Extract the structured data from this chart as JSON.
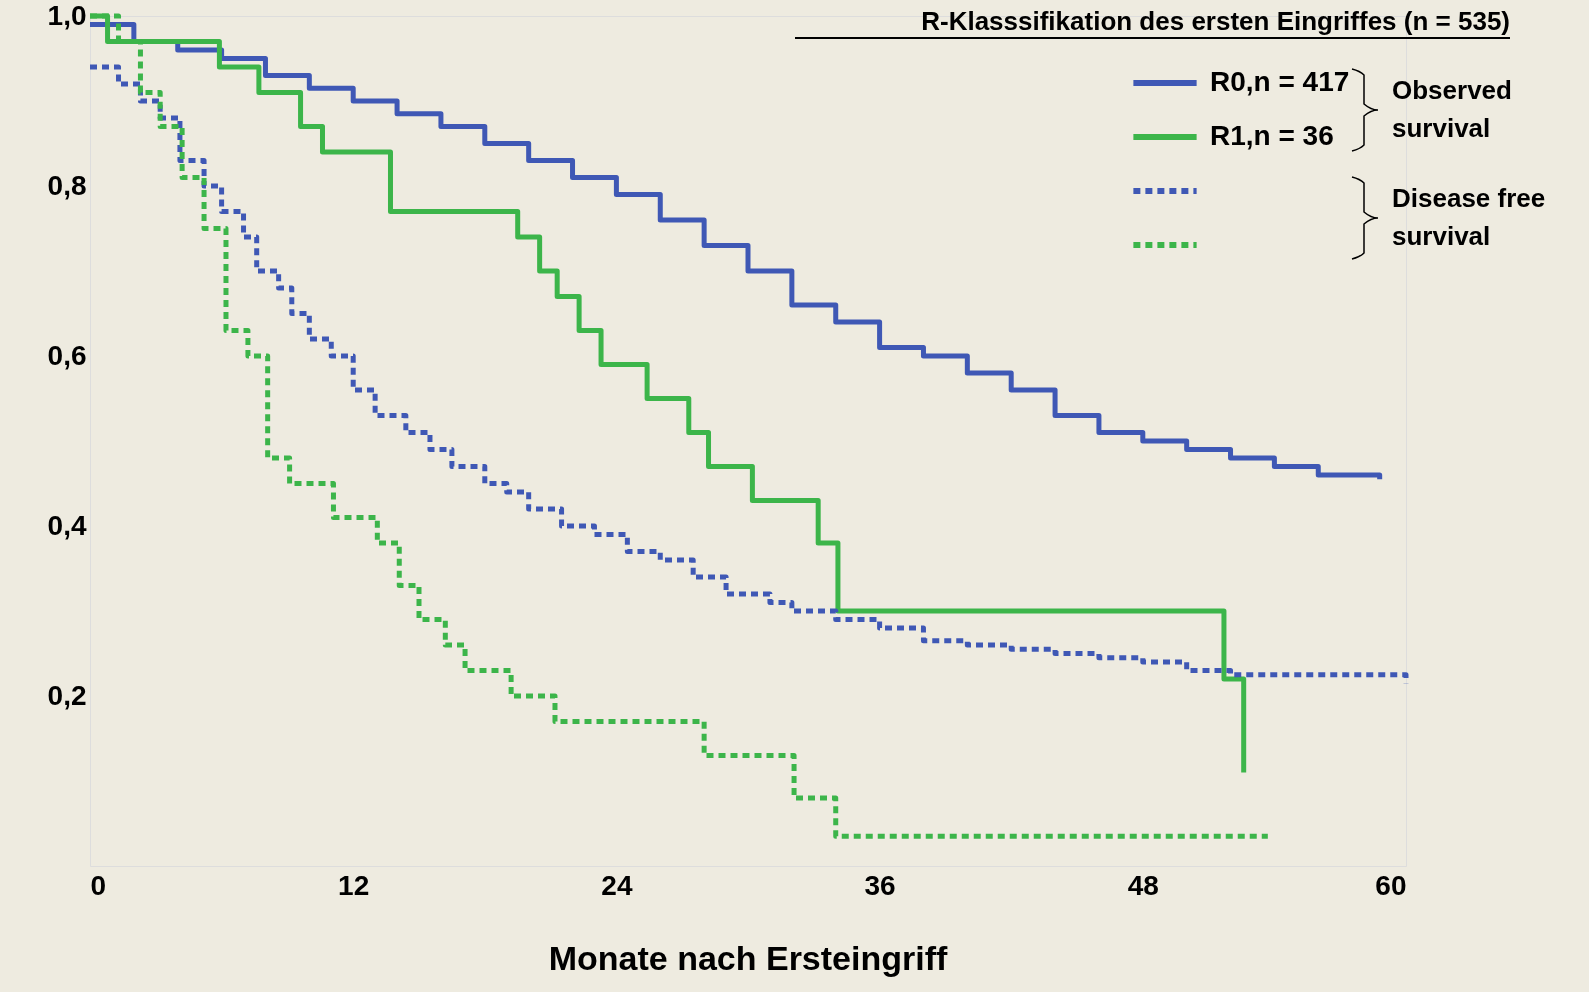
{
  "chart_data": {
    "type": "step",
    "xlabel": "Monate nach Ersteingriff",
    "legend_title": "R-Klasssifikation des ersten Eingriffes (n = 535)",
    "xlim": [
      0,
      60
    ],
    "xticks": [
      0,
      12,
      24,
      36,
      48,
      60
    ],
    "ylim": [
      0,
      1.0
    ],
    "yticks": [
      {
        "value": 0,
        "label": null
      },
      {
        "value": 0.2,
        "label": "0,2"
      },
      {
        "value": 0.4,
        "label": "0,4"
      },
      {
        "value": 0.6,
        "label": "0,6"
      },
      {
        "value": 0.8,
        "label": "0,8"
      },
      {
        "value": 1.0,
        "label": "1,0"
      }
    ],
    "grid": false,
    "legend": "top right",
    "marker": "none",
    "annotations": [
      "Observed\nsurvival",
      "Disease free\nsurvival"
    ],
    "series": [
      {
        "name": "R0,n = 417",
        "color": "#3f58b5",
        "line_style": "solid",
        "x": [
          0,
          2,
          4,
          6,
          8,
          10,
          12,
          14,
          16,
          18,
          20,
          22,
          24,
          26,
          28,
          30,
          32,
          34,
          36,
          38,
          40,
          42,
          44,
          46,
          48,
          50,
          52,
          54,
          56,
          58.8
        ],
        "values": [
          0.99,
          0.97,
          0.96,
          0.95,
          0.93,
          0.915,
          0.9,
          0.885,
          0.87,
          0.85,
          0.83,
          0.81,
          0.79,
          0.76,
          0.73,
          0.7,
          0.66,
          0.64,
          0.61,
          0.6,
          0.58,
          0.56,
          0.53,
          0.51,
          0.5,
          0.49,
          0.48,
          0.47,
          0.46,
          0.455
        ]
      },
      {
        "name": "R1,n =   36",
        "color": "#3cb54a",
        "line_style": "solid",
        "x": [
          0,
          0.8,
          5.9,
          7.7,
          9.6,
          10.6,
          13.7,
          19.5,
          20.5,
          21.3,
          22.3,
          23.3,
          25.4,
          27.3,
          28.2,
          30.2,
          33.2,
          34.1,
          51.7,
          52.6
        ],
        "values": [
          1.0,
          0.97,
          0.94,
          0.91,
          0.87,
          0.84,
          0.77,
          0.74,
          0.7,
          0.67,
          0.63,
          0.59,
          0.55,
          0.51,
          0.47,
          0.43,
          0.38,
          0.3,
          0.22,
          0.11
        ]
      },
      {
        "color": "#3f58b5",
        "line_style": "dotted",
        "x": [
          0,
          1.3,
          2.3,
          3.2,
          4.1,
          5.2,
          6.0,
          7.0,
          7.6,
          8.6,
          9.2,
          10.0,
          11.0,
          12.0,
          13.0,
          14.4,
          15.5,
          16.5,
          18.0,
          19.0,
          20.0,
          21.5,
          23.0,
          24.5,
          26.0,
          27.5,
          29.0,
          31.0,
          32.0,
          34.0,
          36.0,
          38.0,
          40.0,
          42.0,
          44.0,
          46.0,
          48.0,
          50.0,
          52.0,
          59.0,
          60.0
        ],
        "values": [
          0.94,
          0.92,
          0.9,
          0.88,
          0.83,
          0.8,
          0.77,
          0.74,
          0.7,
          0.68,
          0.65,
          0.62,
          0.6,
          0.56,
          0.53,
          0.51,
          0.49,
          0.47,
          0.45,
          0.44,
          0.42,
          0.4,
          0.39,
          0.37,
          0.36,
          0.34,
          0.32,
          0.31,
          0.3,
          0.29,
          0.28,
          0.265,
          0.26,
          0.255,
          0.25,
          0.245,
          0.24,
          0.23,
          0.225,
          0.225,
          0.215
        ]
      },
      {
        "color": "#3cb54a",
        "line_style": "dotted",
        "x": [
          0,
          1.3,
          2.3,
          3.2,
          4.2,
          5.2,
          6.2,
          7.2,
          8.1,
          9.1,
          11.1,
          13.1,
          14.1,
          15.0,
          16.2,
          17.1,
          19.2,
          21.2,
          28.0,
          32.1,
          34.0,
          53.7
        ],
        "values": [
          1.0,
          0.97,
          0.91,
          0.87,
          0.81,
          0.75,
          0.63,
          0.6,
          0.48,
          0.45,
          0.41,
          0.38,
          0.33,
          0.29,
          0.26,
          0.23,
          0.2,
          0.17,
          0.13,
          0.08,
          0.035,
          0.035
        ]
      }
    ]
  }
}
